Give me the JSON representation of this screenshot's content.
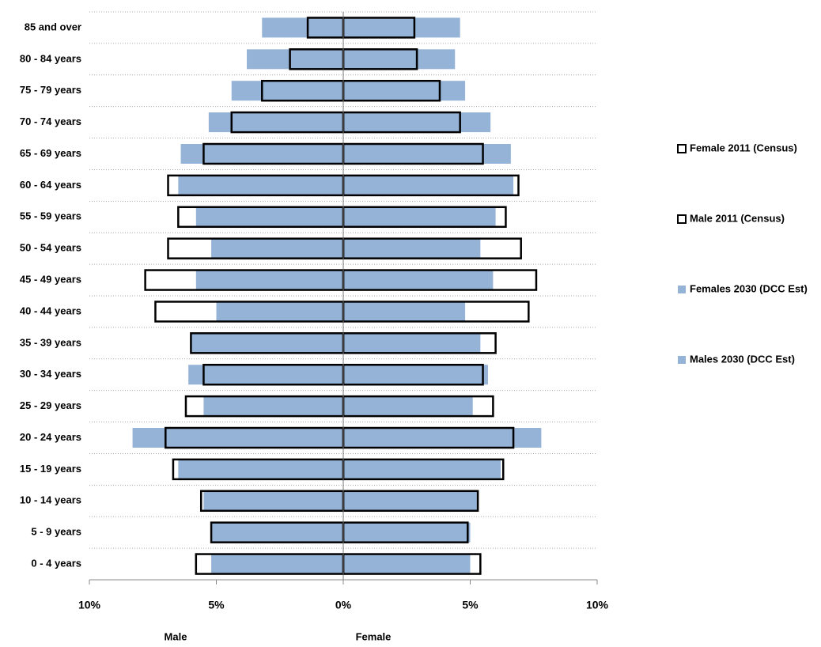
{
  "chart_data": {
    "type": "bar",
    "orientation": "horizontal",
    "categories": [
      "0 - 4 years",
      "5 - 9 years",
      "10 - 14 years",
      "15 - 19 years",
      "20 - 24 years",
      "25 - 29 years",
      "30 - 34 years",
      "35 - 39 years",
      "40 - 44 years",
      "45 - 49 years",
      "50 - 54 years",
      "55 - 59 years",
      "60 - 64 years",
      "65 - 69 years",
      "70 - 74 years",
      "75 - 79 years",
      "80 - 84 years",
      "85 and over"
    ],
    "series": [
      {
        "name": "Female 2011 (Census)",
        "color": "#000000",
        "fill": "none",
        "values": [
          5.4,
          4.9,
          5.3,
          6.3,
          6.7,
          5.9,
          5.5,
          6.0,
          7.3,
          7.6,
          7.0,
          6.4,
          6.9,
          5.5,
          4.6,
          3.8,
          2.9,
          2.8
        ]
      },
      {
        "name": "Male 2011 (Census)",
        "color": "#000000",
        "fill": "none",
        "values": [
          -5.8,
          -5.2,
          -5.6,
          -6.7,
          -7.0,
          -6.2,
          -5.5,
          -6.0,
          -7.4,
          -7.8,
          -6.9,
          -6.5,
          -6.9,
          -5.5,
          -4.4,
          -3.2,
          -2.1,
          -1.4
        ]
      },
      {
        "name": "Females 2030 (DCC Est)",
        "color": "#95b3d7",
        "fill": "#95b3d7",
        "values": [
          5.0,
          5.0,
          5.3,
          6.2,
          7.8,
          5.1,
          5.7,
          5.4,
          4.8,
          5.9,
          5.4,
          6.0,
          6.7,
          6.6,
          5.8,
          4.8,
          4.4,
          4.6
        ]
      },
      {
        "name": "Males 2030 (DCC Est)",
        "color": "#95b3d7",
        "fill": "#95b3d7",
        "values": [
          -5.2,
          -5.2,
          -5.5,
          -6.5,
          -8.3,
          -5.5,
          -6.1,
          -6.0,
          -5.0,
          -5.8,
          -5.2,
          -5.8,
          -6.5,
          -6.4,
          -5.3,
          -4.4,
          -3.8,
          -3.2
        ]
      }
    ],
    "xlim": [
      -10,
      10
    ],
    "xticks": [
      {
        "value": -10,
        "label": "10%"
      },
      {
        "value": -5,
        "label": "5%"
      },
      {
        "value": 0,
        "label": "0%"
      },
      {
        "value": 5,
        "label": "5%"
      },
      {
        "value": 10,
        "label": "10%"
      }
    ],
    "left_label": "Male",
    "right_label": "Female",
    "legend": "right"
  }
}
